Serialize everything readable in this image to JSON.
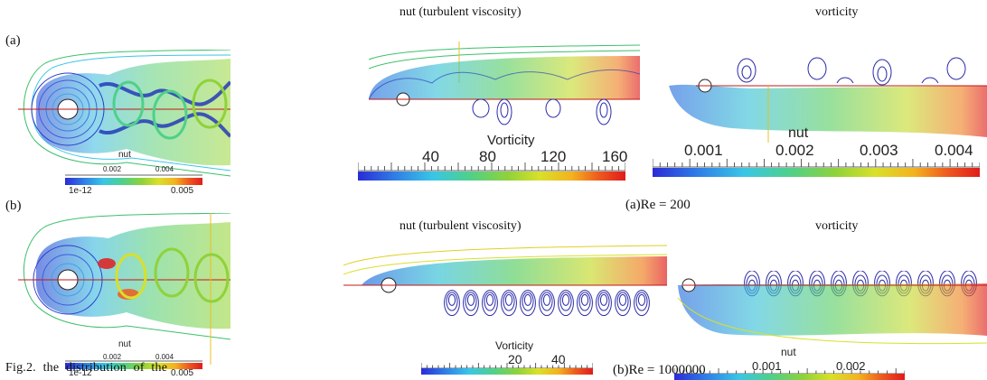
{
  "left_panel": {
    "label_a": "(a)",
    "label_b": "(b)",
    "caption": "Fig.2. the distribution of the",
    "a_colorbar": {
      "title": "nut",
      "top_ticks": [
        "0.002",
        "0.004"
      ],
      "min": "1e-12",
      "max": "0.005"
    },
    "b_colorbar": {
      "title": "nut",
      "top_ticks": [
        "0.002",
        "0.004"
      ],
      "min": "1e-12",
      "max": "0.005"
    }
  },
  "right_panel": {
    "row_a": {
      "title_left": "nut (turbulent viscosity)",
      "title_right": "vorticity",
      "caption": "(a)Re = 200",
      "vort_colorbar": {
        "title": "Vorticity",
        "ticks": [
          "40",
          "80",
          "120",
          "160"
        ]
      },
      "nut_colorbar": {
        "title": "nut",
        "ticks": [
          "0.001",
          "0.002",
          "0.003",
          "0.004"
        ]
      }
    },
    "row_b": {
      "title_left": "nut (turbulent viscosity)",
      "title_right": "vorticity",
      "caption": "(b)Re = 1000000",
      "vort_colorbar": {
        "title": "Vorticity",
        "ticks": [
          "20",
          "40"
        ]
      },
      "nut_colorbar": {
        "title": "nut",
        "ticks": [
          "0.001",
          "0.002"
        ]
      }
    }
  },
  "colors": {
    "rainbow": [
      "#2b2bd6",
      "#2f7fe6",
      "#39c6e6",
      "#4fd08a",
      "#8fd23a",
      "#d9e02a",
      "#f3b21f",
      "#ee5a1e",
      "#e01c1c"
    ],
    "contour_blue": "#2a2aa8",
    "contour_green": "#3cc06a",
    "axis_red": "#c01818"
  }
}
